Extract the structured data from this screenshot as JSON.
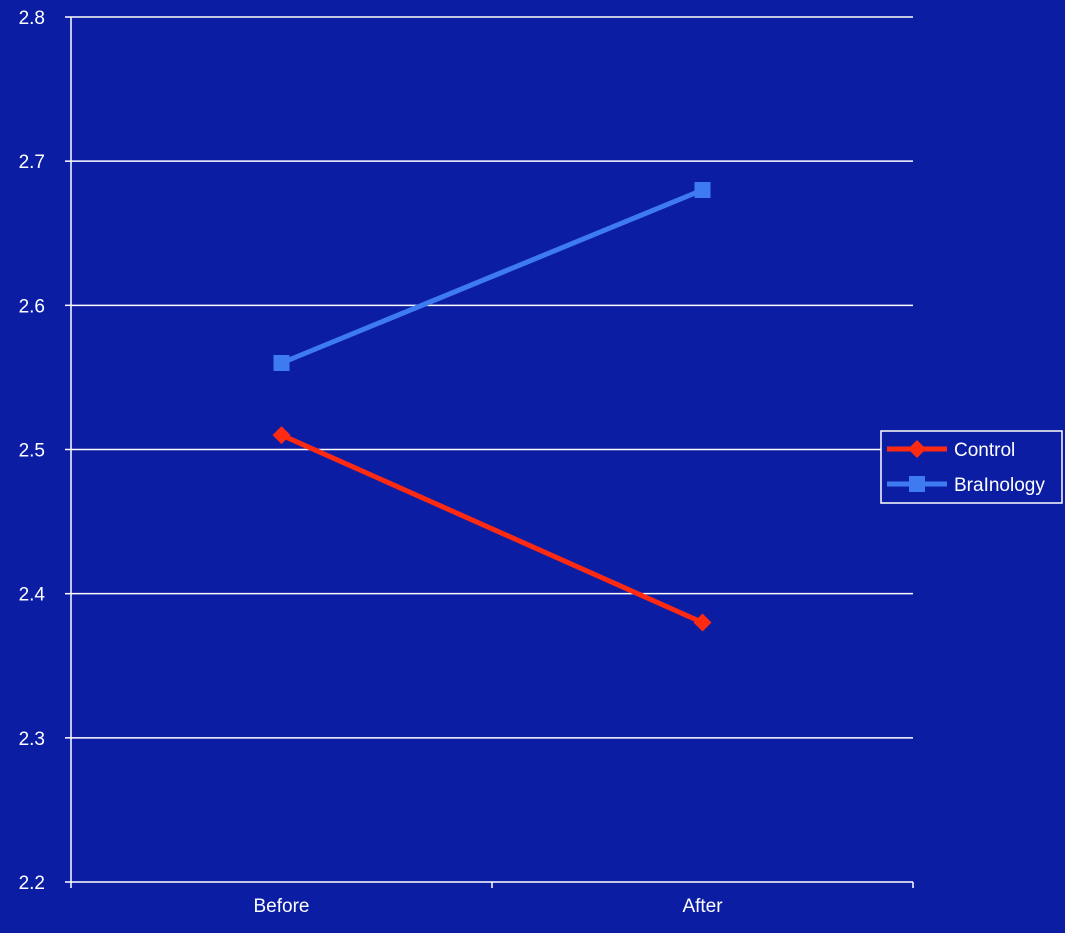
{
  "chart_data": {
    "type": "line",
    "categories": [
      "Before",
      "After"
    ],
    "series": [
      {
        "name": "Control",
        "values": [
          2.51,
          2.38
        ],
        "color": "#ff2a12",
        "marker": "diamond"
      },
      {
        "name": "BraInology",
        "values": [
          2.56,
          2.68
        ],
        "color": "#3f7bf0",
        "marker": "square"
      }
    ],
    "ylim": [
      2.2,
      2.8
    ],
    "yticks": [
      "2.2",
      "2.3",
      "2.4",
      "2.5",
      "2.6",
      "2.7",
      "2.8"
    ],
    "grid": true,
    "legend": "right",
    "background": "#0b1ea3",
    "gridline_color": "#ffffff",
    "text_color": "#ffffff"
  }
}
